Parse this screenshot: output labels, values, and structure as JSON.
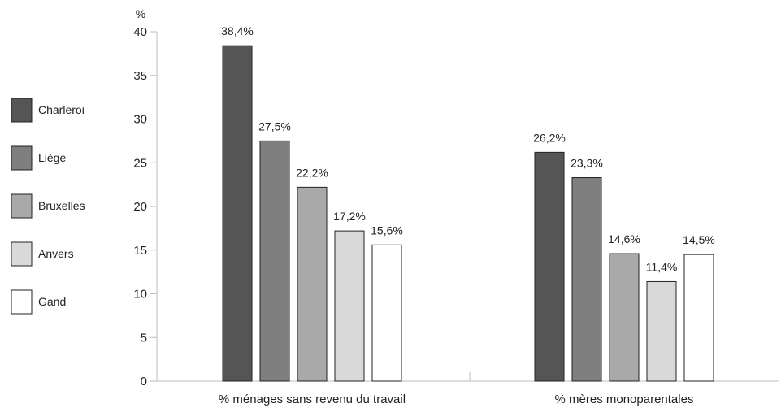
{
  "chart_data": {
    "type": "bar",
    "title": "",
    "xlabel": "",
    "ylabel": "%",
    "ylim": [
      0,
      40
    ],
    "yticks": [
      "0",
      "5",
      "10",
      "15",
      "20",
      "25",
      "30",
      "35",
      "40"
    ],
    "grid": false,
    "legend_position": "left",
    "categories": [
      "% ménages sans revenu du travail",
      "% mères monoparentales"
    ],
    "series": [
      {
        "name": "Charleroi",
        "color": "#555555",
        "values": [
          38.4,
          26.2
        ],
        "labels": [
          "38,4%",
          "26,2%"
        ]
      },
      {
        "name": "Liège",
        "color": "#7f7f7f",
        "values": [
          27.5,
          23.3
        ],
        "labels": [
          "27,5%",
          "23,3%"
        ]
      },
      {
        "name": "Bruxelles",
        "color": "#a9a9a9",
        "values": [
          22.2,
          14.6
        ],
        "labels": [
          "22,2%",
          "14,6%"
        ]
      },
      {
        "name": "Anvers",
        "color": "#d9d9d9",
        "values": [
          17.2,
          11.4
        ],
        "labels": [
          "17,2%",
          "11,4%"
        ]
      },
      {
        "name": "Gand",
        "color": "#ffffff",
        "values": [
          15.6,
          14.5
        ],
        "labels": [
          "15,6%",
          "14,5%"
        ]
      }
    ]
  }
}
